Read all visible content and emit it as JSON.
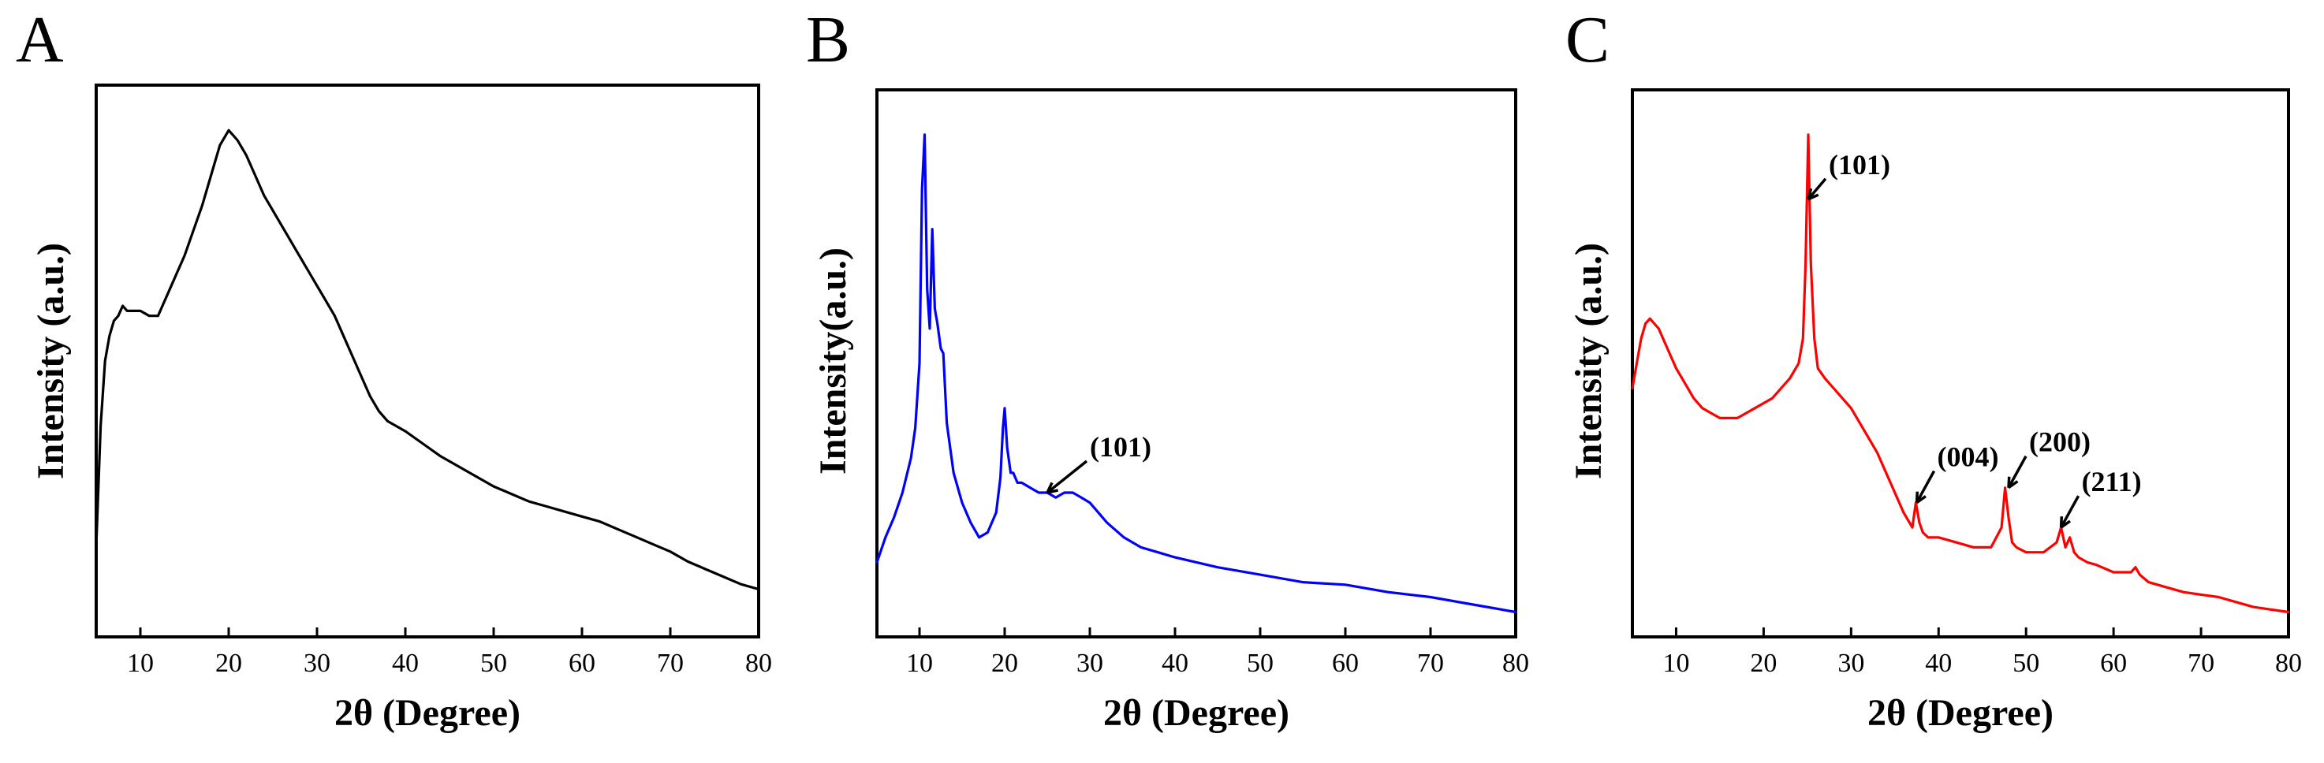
{
  "chart_data": [
    {
      "panel": "A",
      "type": "line",
      "xlabel": "2θ  (Degree)",
      "ylabel": "Intensity (a.u.)",
      "xlim": [
        5,
        80
      ],
      "x_ticks": [
        10,
        20,
        30,
        40,
        50,
        60,
        70,
        80
      ],
      "y_ticks_labeled": false,
      "color": "#000000",
      "series": [
        {
          "x": [
            5,
            5.5,
            6,
            6.5,
            7,
            7.5,
            8,
            8.5,
            9,
            10,
            11,
            12,
            13,
            14,
            15,
            16,
            17,
            18,
            19,
            20,
            20.5,
            21,
            22,
            23,
            24,
            25,
            26,
            27,
            28,
            29,
            30,
            31,
            32,
            33,
            34,
            35,
            36,
            37,
            38,
            40,
            42,
            44,
            46,
            48,
            50,
            52,
            54,
            56,
            58,
            60,
            62,
            64,
            66,
            68,
            70,
            72,
            74,
            76,
            78,
            80
          ],
          "y": [
            18,
            42,
            55,
            60,
            63,
            64,
            66,
            65,
            65,
            65,
            64,
            64,
            68,
            72,
            76,
            81,
            86,
            92,
            98,
            101,
            100,
            99,
            96,
            92,
            88,
            85,
            82,
            79,
            76,
            73,
            70,
            67,
            64,
            60,
            56,
            52,
            48,
            45,
            43,
            41,
            38.5,
            36,
            34,
            32,
            30,
            28.5,
            27,
            26,
            25,
            24,
            23,
            21.5,
            20,
            18.5,
            17,
            15,
            13.5,
            12,
            10.5,
            9.5
          ]
        }
      ],
      "annotations": []
    },
    {
      "panel": "B",
      "type": "line",
      "xlabel": "2θ (Degree)",
      "ylabel": "Intensity(a.u.)",
      "xlim": [
        5,
        80
      ],
      "x_ticks": [
        10,
        20,
        30,
        40,
        50,
        60,
        70,
        80
      ],
      "y_ticks_labeled": false,
      "color": "#0000ff",
      "series": [
        {
          "x": [
            5,
            6,
            7,
            8,
            9,
            9.5,
            10,
            10.3,
            10.6,
            10.9,
            11.2,
            11.5,
            11.8,
            12.1,
            12.5,
            12.8,
            13.2,
            14,
            15,
            16,
            17,
            18,
            19,
            19.5,
            19.8,
            20,
            20.3,
            20.7,
            21,
            21.5,
            22,
            23,
            24,
            25,
            26,
            27,
            28,
            29,
            30,
            31,
            32,
            34,
            36,
            38,
            40,
            45,
            50,
            55,
            60,
            65,
            70,
            75,
            80
          ],
          "y": [
            15,
            20,
            24,
            29,
            36,
            42,
            55,
            90,
            101,
            70,
            62,
            82,
            66,
            63,
            58,
            57,
            43,
            33,
            27,
            23,
            20,
            21,
            25,
            32,
            42,
            46,
            38,
            33,
            33,
            31,
            31,
            30,
            29,
            29,
            28,
            29,
            29,
            28,
            27,
            25,
            23,
            20,
            18,
            17,
            16,
            14,
            12.5,
            11,
            10.5,
            9,
            8,
            6.5,
            5
          ]
        }
      ],
      "annotations": [
        {
          "label": "(101)",
          "x": 25,
          "y": 29
        }
      ]
    },
    {
      "panel": "C",
      "type": "line",
      "xlabel": "2θ (Degree)",
      "ylabel": "Intensity (a.u.)",
      "xlim": [
        5,
        80
      ],
      "x_ticks": [
        10,
        20,
        30,
        40,
        50,
        60,
        70,
        80
      ],
      "y_ticks_labeled": false,
      "color": "#ff0000",
      "series": [
        {
          "x": [
            5,
            5.5,
            6,
            6.5,
            7,
            8,
            9,
            10,
            11,
            12,
            13,
            14,
            15,
            16,
            17,
            18,
            19,
            20,
            21,
            22,
            23,
            24,
            24.5,
            24.8,
            25.1,
            25.4,
            25.8,
            26.2,
            27,
            28,
            29,
            30,
            31,
            32,
            33,
            34,
            35,
            36,
            37,
            37.4,
            37.8,
            38.2,
            38.8,
            40,
            42,
            44,
            46,
            47.2,
            47.6,
            48,
            48.4,
            48.9,
            50,
            52,
            53.5,
            54,
            54.5,
            55,
            55.5,
            56,
            57,
            58,
            60,
            62,
            62.5,
            63,
            64,
            66,
            68,
            70,
            72,
            74,
            76,
            78,
            80
          ],
          "y": [
            50,
            55,
            60,
            63,
            64,
            62,
            58,
            54,
            51,
            48,
            46,
            45,
            44,
            44,
            44,
            45,
            46,
            47,
            48,
            50,
            52,
            55,
            60,
            75,
            101,
            75,
            60,
            54,
            52,
            50,
            48,
            46,
            43,
            40,
            37,
            33,
            29,
            25,
            22,
            27,
            23,
            21,
            20,
            20,
            19,
            18,
            18,
            22,
            30,
            24,
            19,
            18,
            17,
            17,
            19,
            22,
            18,
            20,
            17,
            16,
            15,
            14.5,
            13,
            13,
            14,
            12.5,
            11,
            10,
            9,
            8.5,
            8,
            7,
            6,
            5.5,
            5
          ]
        }
      ],
      "annotations": [
        {
          "label": "(101)",
          "x": 25.1,
          "y": 88
        },
        {
          "label": "(004)",
          "x": 37.5,
          "y": 27
        },
        {
          "label": "(200)",
          "x": 48,
          "y": 30
        },
        {
          "label": "(211)",
          "x": 54,
          "y": 22
        }
      ]
    }
  ]
}
